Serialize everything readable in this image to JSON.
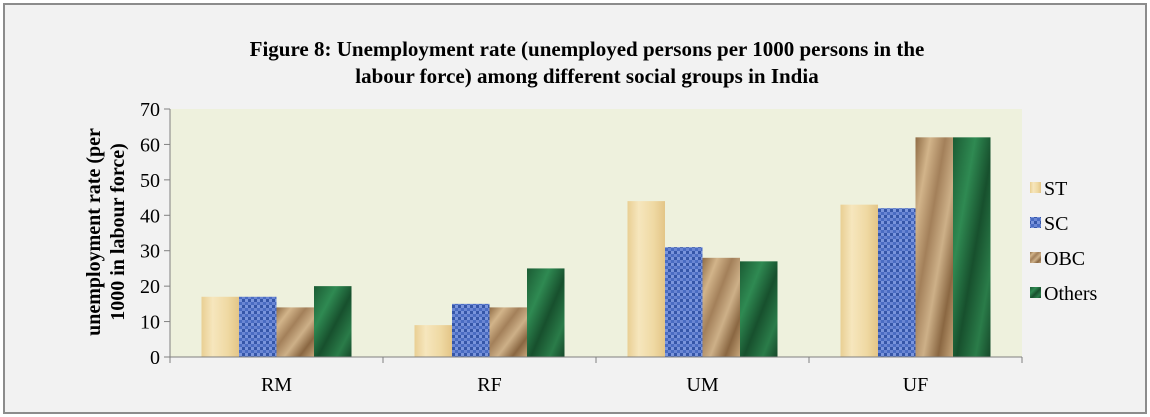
{
  "chart_data": {
    "type": "bar",
    "title": "Figure 8: Unemployment rate (unemployed persons per 1000 persons in the labour force) among different social groups in India",
    "title_lines": [
      "Figure 8: Unemployment rate (unemployed persons per 1000 persons in the",
      "labour force) among different social groups in India"
    ],
    "xlabel": "",
    "ylabel": "unemployment rate (per 1000 in labour force)",
    "ylabel_lines": [
      "unemployment rate (per",
      "1000 in labour force)"
    ],
    "categories": [
      "RM",
      "RF",
      "UM",
      "UF"
    ],
    "ylim": [
      0,
      70
    ],
    "yticks": [
      0,
      10,
      20,
      30,
      40,
      50,
      60,
      70
    ],
    "grid": false,
    "legend_position": "right",
    "plot_background": "#eef1dd",
    "series": [
      {
        "name": "ST",
        "values": [
          17,
          9,
          44,
          43
        ],
        "color": "#efd9a3",
        "texture": "parchment"
      },
      {
        "name": "SC",
        "values": [
          17,
          15,
          31,
          42
        ],
        "color": "#4f72c6",
        "texture": "woven-blue"
      },
      {
        "name": "OBC",
        "values": [
          14,
          14,
          28,
          62
        ],
        "color": "#b08b5f",
        "texture": "crumpled-paper"
      },
      {
        "name": "Others",
        "values": [
          20,
          25,
          27,
          62
        ],
        "color": "#1f6b3c",
        "texture": "green-marble"
      }
    ]
  }
}
